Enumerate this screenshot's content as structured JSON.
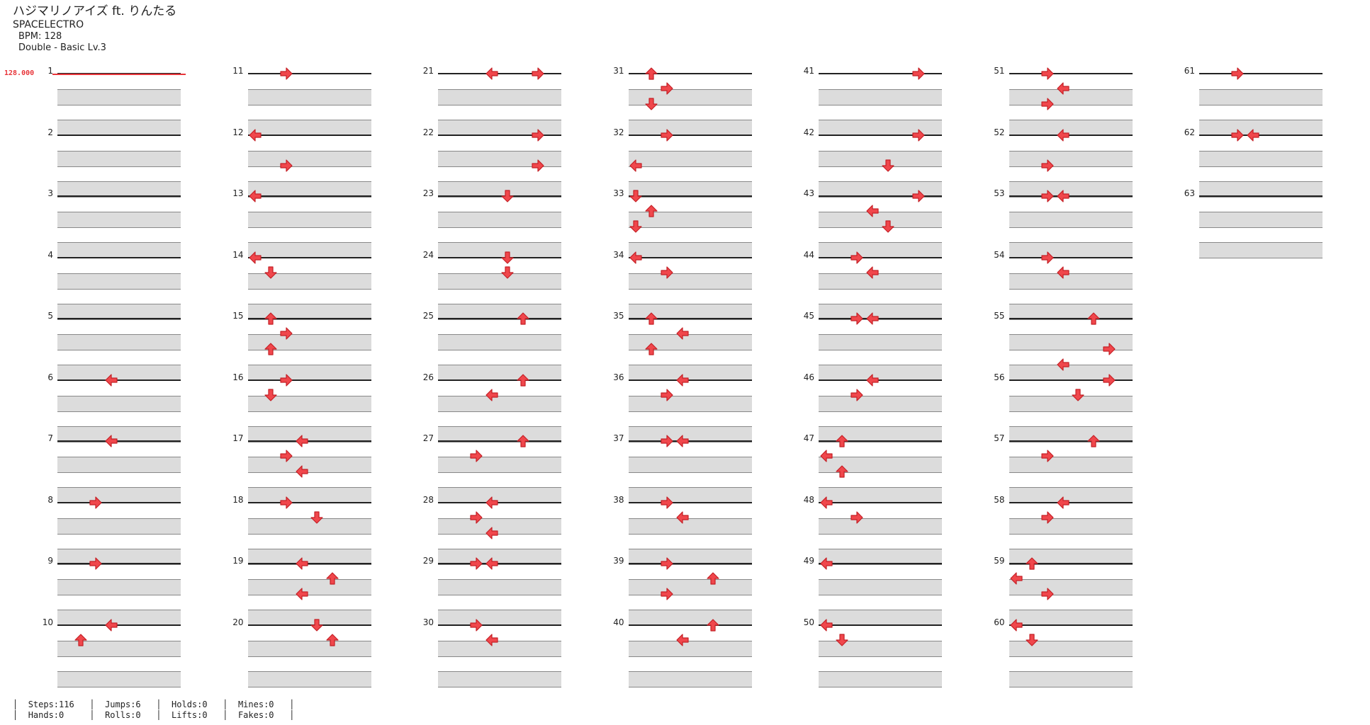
{
  "header": {
    "title": "ハジマリノアイズ ft. りんたる",
    "artist": "SPACELECTRO",
    "bpm": "BPM: 128",
    "difficulty": "Double - Basic  Lv.3"
  },
  "bpm_change": {
    "label": "128.000"
  },
  "stats": {
    "steps": "Steps:116",
    "hands": "Hands:0",
    "jumps": "Jumps:6",
    "rolls": "Rolls:0",
    "holds": "Holds:0",
    "lifts": "Lifts:0",
    "mines": "Mines:0",
    "fakes": "Fakes:0"
  },
  "columns_total": 8,
  "measure_count": 63,
  "notes_legend": "col: lane 0-7 (left to right), row: 0=beat line, 1/2=upper/lower band; dir: L/D/U/R",
  "notes": [
    {
      "m": 6,
      "col": 3,
      "row": 0,
      "dir": "L"
    },
    {
      "m": 7,
      "col": 3,
      "row": 0,
      "dir": "L"
    },
    {
      "m": 8,
      "col": 2,
      "row": 0,
      "dir": "R"
    },
    {
      "m": 9,
      "col": 2,
      "row": 0,
      "dir": "R"
    },
    {
      "m": 10,
      "col": 3,
      "row": 0,
      "dir": "L"
    },
    {
      "m": 10,
      "col": 1,
      "row": 1,
      "dir": "U"
    },
    {
      "m": 11,
      "col": 2,
      "row": 0,
      "dir": "R"
    },
    {
      "m": 12,
      "col": 0,
      "row": 0,
      "dir": "L"
    },
    {
      "m": 12,
      "col": 2,
      "row": 2,
      "dir": "R"
    },
    {
      "m": 13,
      "col": 0,
      "row": 0,
      "dir": "L"
    },
    {
      "m": 14,
      "col": 0,
      "row": 0,
      "dir": "L"
    },
    {
      "m": 14,
      "col": 1,
      "row": 1,
      "dir": "D"
    },
    {
      "m": 15,
      "col": 1,
      "row": 0,
      "dir": "U"
    },
    {
      "m": 15,
      "col": 2,
      "row": 1,
      "dir": "R"
    },
    {
      "m": 15,
      "col": 1,
      "row": 2,
      "dir": "U"
    },
    {
      "m": 16,
      "col": 2,
      "row": 0,
      "dir": "R"
    },
    {
      "m": 16,
      "col": 1,
      "row": 1,
      "dir": "D"
    },
    {
      "m": 17,
      "col": 3,
      "row": 0,
      "dir": "L"
    },
    {
      "m": 17,
      "col": 2,
      "row": 1,
      "dir": "R"
    },
    {
      "m": 17,
      "col": 3,
      "row": 2,
      "dir": "L"
    },
    {
      "m": 18,
      "col": 2,
      "row": 0,
      "dir": "R"
    },
    {
      "m": 18,
      "col": 4,
      "row": 1,
      "dir": "D"
    },
    {
      "m": 19,
      "col": 3,
      "row": 0,
      "dir": "L"
    },
    {
      "m": 19,
      "col": 5,
      "row": 1,
      "dir": "U"
    },
    {
      "m": 19,
      "col": 3,
      "row": 2,
      "dir": "L"
    },
    {
      "m": 20,
      "col": 4,
      "row": 0,
      "dir": "D"
    },
    {
      "m": 20,
      "col": 5,
      "row": 1,
      "dir": "U"
    },
    {
      "m": 21,
      "col": 3,
      "row": 0,
      "dir": "L"
    },
    {
      "m": 21,
      "col": 6,
      "row": 0,
      "dir": "R"
    },
    {
      "m": 22,
      "col": 6,
      "row": 0,
      "dir": "R"
    },
    {
      "m": 22,
      "col": 6,
      "row": 2,
      "dir": "R"
    },
    {
      "m": 23,
      "col": 4,
      "row": 0,
      "dir": "D"
    },
    {
      "m": 24,
      "col": 4,
      "row": 0,
      "dir": "D"
    },
    {
      "m": 24,
      "col": 4,
      "row": 1,
      "dir": "D"
    },
    {
      "m": 25,
      "col": 5,
      "row": 0,
      "dir": "U"
    },
    {
      "m": 26,
      "col": 5,
      "row": 0,
      "dir": "U"
    },
    {
      "m": 26,
      "col": 3,
      "row": 1,
      "dir": "L"
    },
    {
      "m": 27,
      "col": 5,
      "row": 0,
      "dir": "U"
    },
    {
      "m": 27,
      "col": 2,
      "row": 1,
      "dir": "R"
    },
    {
      "m": 28,
      "col": 3,
      "row": 0,
      "dir": "L"
    },
    {
      "m": 28,
      "col": 2,
      "row": 1,
      "dir": "R"
    },
    {
      "m": 28,
      "col": 3,
      "row": 2,
      "dir": "L"
    },
    {
      "m": 29,
      "col": 2,
      "row": 0,
      "dir": "R"
    },
    {
      "m": 29,
      "col": 3,
      "row": 0,
      "dir": "L"
    },
    {
      "m": 30,
      "col": 2,
      "row": 0,
      "dir": "R"
    },
    {
      "m": 30,
      "col": 3,
      "row": 1,
      "dir": "L"
    },
    {
      "m": 31,
      "col": 1,
      "row": 0,
      "dir": "U"
    },
    {
      "m": 31,
      "col": 2,
      "row": 1,
      "dir": "R"
    },
    {
      "m": 31,
      "col": 1,
      "row": 2,
      "dir": "D"
    },
    {
      "m": 32,
      "col": 2,
      "row": 0,
      "dir": "R"
    },
    {
      "m": 32,
      "col": 0,
      "row": 2,
      "dir": "L"
    },
    {
      "m": 33,
      "col": 0,
      "row": 0,
      "dir": "D"
    },
    {
      "m": 33,
      "col": 1,
      "row": 1,
      "dir": "U"
    },
    {
      "m": 33,
      "col": 0,
      "row": 2,
      "dir": "D"
    },
    {
      "m": 34,
      "col": 0,
      "row": 0,
      "dir": "L"
    },
    {
      "m": 34,
      "col": 2,
      "row": 1,
      "dir": "R"
    },
    {
      "m": 35,
      "col": 1,
      "row": 0,
      "dir": "U"
    },
    {
      "m": 35,
      "col": 3,
      "row": 1,
      "dir": "L"
    },
    {
      "m": 35,
      "col": 1,
      "row": 2,
      "dir": "U"
    },
    {
      "m": 36,
      "col": 3,
      "row": 0,
      "dir": "L"
    },
    {
      "m": 36,
      "col": 2,
      "row": 1,
      "dir": "R"
    },
    {
      "m": 37,
      "col": 2,
      "row": 0,
      "dir": "R"
    },
    {
      "m": 37,
      "col": 3,
      "row": 0,
      "dir": "L"
    },
    {
      "m": 38,
      "col": 2,
      "row": 0,
      "dir": "R"
    },
    {
      "m": 38,
      "col": 3,
      "row": 1,
      "dir": "L"
    },
    {
      "m": 39,
      "col": 2,
      "row": 0,
      "dir": "R"
    },
    {
      "m": 39,
      "col": 5,
      "row": 1,
      "dir": "U"
    },
    {
      "m": 39,
      "col": 2,
      "row": 2,
      "dir": "R"
    },
    {
      "m": 40,
      "col": 5,
      "row": 0,
      "dir": "U"
    },
    {
      "m": 40,
      "col": 3,
      "row": 1,
      "dir": "L"
    },
    {
      "m": 41,
      "col": 6,
      "row": 0,
      "dir": "R"
    },
    {
      "m": 42,
      "col": 6,
      "row": 0,
      "dir": "R"
    },
    {
      "m": 42,
      "col": 4,
      "row": 2,
      "dir": "D"
    },
    {
      "m": 43,
      "col": 6,
      "row": 0,
      "dir": "R"
    },
    {
      "m": 43,
      "col": 3,
      "row": 1,
      "dir": "L"
    },
    {
      "m": 43,
      "col": 4,
      "row": 2,
      "dir": "D"
    },
    {
      "m": 44,
      "col": 2,
      "row": 0,
      "dir": "R"
    },
    {
      "m": 44,
      "col": 3,
      "row": 1,
      "dir": "L"
    },
    {
      "m": 45,
      "col": 2,
      "row": 0,
      "dir": "R"
    },
    {
      "m": 45,
      "col": 3,
      "row": 0,
      "dir": "L"
    },
    {
      "m": 46,
      "col": 3,
      "row": 0,
      "dir": "L"
    },
    {
      "m": 46,
      "col": 2,
      "row": 1,
      "dir": "R"
    },
    {
      "m": 47,
      "col": 1,
      "row": 0,
      "dir": "U"
    },
    {
      "m": 47,
      "col": 0,
      "row": 1,
      "dir": "L"
    },
    {
      "m": 47,
      "col": 1,
      "row": 2,
      "dir": "U"
    },
    {
      "m": 48,
      "col": 0,
      "row": 0,
      "dir": "L"
    },
    {
      "m": 48,
      "col": 2,
      "row": 1,
      "dir": "R"
    },
    {
      "m": 49,
      "col": 0,
      "row": 0,
      "dir": "L"
    },
    {
      "m": 50,
      "col": 0,
      "row": 0,
      "dir": "L"
    },
    {
      "m": 50,
      "col": 1,
      "row": 1,
      "dir": "D"
    },
    {
      "m": 51,
      "col": 2,
      "row": 0,
      "dir": "R"
    },
    {
      "m": 51,
      "col": 3,
      "row": 1,
      "dir": "L"
    },
    {
      "m": 51,
      "col": 2,
      "row": 2,
      "dir": "R"
    },
    {
      "m": 52,
      "col": 3,
      "row": 0,
      "dir": "L"
    },
    {
      "m": 52,
      "col": 2,
      "row": 2,
      "dir": "R"
    },
    {
      "m": 53,
      "col": 2,
      "row": 0,
      "dir": "R"
    },
    {
      "m": 53,
      "col": 3,
      "row": 0,
      "dir": "L"
    },
    {
      "m": 54,
      "col": 2,
      "row": 0,
      "dir": "R"
    },
    {
      "m": 54,
      "col": 3,
      "row": 1,
      "dir": "L"
    },
    {
      "m": 55,
      "col": 5,
      "row": 0,
      "dir": "U"
    },
    {
      "m": 55,
      "col": 6,
      "row": 2,
      "dir": "R"
    },
    {
      "m": 56,
      "col": 3,
      "row": -1,
      "dir": "L"
    },
    {
      "m": 56,
      "col": 6,
      "row": 0,
      "dir": "R"
    },
    {
      "m": 56,
      "col": 4,
      "row": 1,
      "dir": "D"
    },
    {
      "m": 57,
      "col": 5,
      "row": 0,
      "dir": "U"
    },
    {
      "m": 57,
      "col": 2,
      "row": 1,
      "dir": "R"
    },
    {
      "m": 58,
      "col": 3,
      "row": 0,
      "dir": "L"
    },
    {
      "m": 58,
      "col": 2,
      "row": 1,
      "dir": "R"
    },
    {
      "m": 59,
      "col": 1,
      "row": 0,
      "dir": "U"
    },
    {
      "m": 59,
      "col": 0,
      "row": 1,
      "dir": "L"
    },
    {
      "m": 59,
      "col": 2,
      "row": 2,
      "dir": "R"
    },
    {
      "m": 60,
      "col": 0,
      "row": 0,
      "dir": "L"
    },
    {
      "m": 60,
      "col": 1,
      "row": 1,
      "dir": "D"
    },
    {
      "m": 61,
      "col": 2,
      "row": 0,
      "dir": "R"
    },
    {
      "m": 62,
      "col": 2,
      "row": 0,
      "dir": "R"
    },
    {
      "m": 62,
      "col": 3,
      "row": 0,
      "dir": "L"
    }
  ]
}
